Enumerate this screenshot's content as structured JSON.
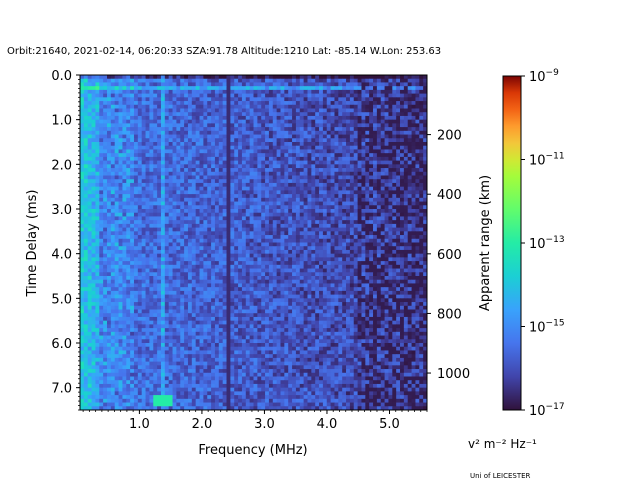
{
  "chart_data": {
    "type": "heatmap",
    "title": "Orbit:21640, 2021-02-14, 06:20:33 SZA:91.78 Altitude:1210 Lat: -85.14 W.Lon: 253.63",
    "xlabel": "Frequency (MHz)",
    "ylabel": "Time Delay (ms)",
    "y2label": "Apparent range (km)",
    "xlim": [
      0.05,
      5.6
    ],
    "ylim": [
      7.5,
      0.0
    ],
    "y2lim": [
      0,
      1124
    ],
    "x_ticks": [
      "1.0",
      "2.0",
      "3.0",
      "4.0",
      "5.0"
    ],
    "x_tick_values": [
      1,
      2,
      3,
      4,
      5
    ],
    "y_ticks": [
      "0.0",
      "1.0",
      "2.0",
      "3.0",
      "4.0",
      "5.0",
      "6.0",
      "7.0"
    ],
    "y_tick_values": [
      0,
      1,
      2,
      3,
      4,
      5,
      6,
      7
    ],
    "y2_ticks": [
      "200",
      "400",
      "600",
      "800",
      "1000"
    ],
    "y2_tick_values": [
      200,
      400,
      600,
      800,
      1000
    ],
    "colorbar": {
      "scale": "log",
      "range": [
        1e-17,
        1e-09
      ],
      "colormap": "turbo",
      "unit_label": "v² m⁻² Hz⁻¹",
      "ticks": [
        {
          "value": -9,
          "base": "10",
          "exp": "−9"
        },
        {
          "value": -11,
          "base": "10",
          "exp": "−11"
        },
        {
          "value": -13,
          "base": "10",
          "exp": "−13"
        },
        {
          "value": -15,
          "base": "10",
          "exp": "−15"
        },
        {
          "value": -17,
          "base": "10",
          "exp": "−17"
        }
      ]
    },
    "grid": false,
    "features": {
      "bright_row_delay_ms": 0.3,
      "dark_vertical_line_mhz": 2.4,
      "bright_vertical_line_mhz": 1.35,
      "bright_low_freq_band_mhz": [
        0.05,
        0.35
      ],
      "bright_patch_mhz": [
        1.2,
        1.55
      ],
      "bright_patch_delay_ms": [
        7.2,
        7.4
      ]
    }
  },
  "credit": "Uni of LEICESTER",
  "colors": {
    "background": "#ffffff",
    "axis": "#000000"
  }
}
